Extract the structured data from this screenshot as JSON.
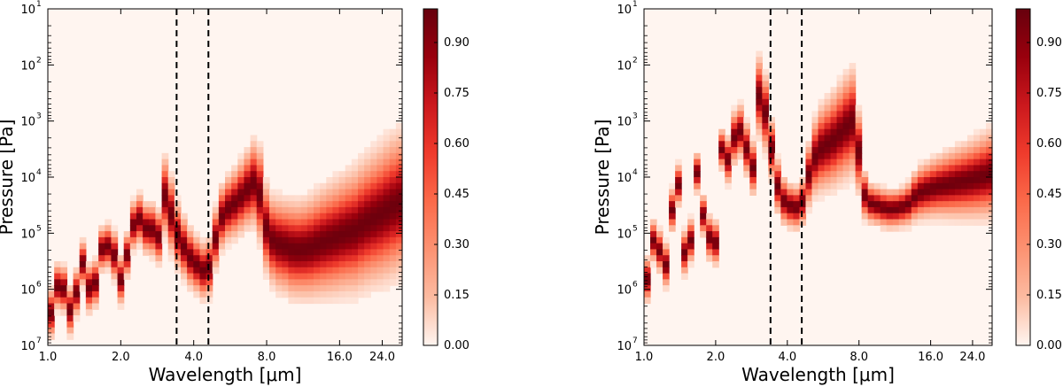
{
  "chart_data": [
    {
      "type": "heatmap",
      "xlabel": "Wavelength [μm]",
      "ylabel": "Pressure [Pa]",
      "x_scale": "log",
      "y_scale": "log",
      "y_inverted": true,
      "xlim": [
        1.0,
        29.0
      ],
      "ylim": [
        10000000,
        10
      ],
      "x_ticks": [
        1.0,
        2.0,
        4.0,
        8.0,
        16.0,
        24.0
      ],
      "x_tick_labels": [
        "1.0",
        "2.0",
        "4.0",
        "8.0",
        "16.0",
        "24.0"
      ],
      "y_ticks": [
        10,
        100,
        1000,
        10000,
        100000,
        1000000,
        10000000
      ],
      "y_tick_labels": [
        {
          "base": "10",
          "exp": "1"
        },
        {
          "base": "10",
          "exp": "2"
        },
        {
          "base": "10",
          "exp": "3"
        },
        {
          "base": "10",
          "exp": "4"
        },
        {
          "base": "10",
          "exp": "5"
        },
        {
          "base": "10",
          "exp": "6"
        },
        {
          "base": "10",
          "exp": "7"
        }
      ],
      "colorbar": {
        "range": [
          0.0,
          1.0
        ],
        "ticks": [
          0.0,
          0.15,
          0.3,
          0.45,
          0.6,
          0.75,
          0.9
        ],
        "tick_labels": [
          "0.00",
          "0.15",
          "0.30",
          "0.45",
          "0.60",
          "0.75",
          "0.90"
        ],
        "colormap": "Reds",
        "colors": [
          "#fff5f0",
          "#fcbba1",
          "#fc9272",
          "#fb6a4a",
          "#ef3b2c",
          "#cb181d",
          "#99000d",
          "#67000d"
        ]
      },
      "vlines": [
        3.4,
        4.6
      ],
      "vline_style": "dashed",
      "contribution_peak": {
        "x": [
          1.0,
          1.05,
          1.12,
          1.2,
          1.28,
          1.36,
          1.45,
          1.55,
          1.65,
          1.75,
          1.88,
          2.0,
          2.1,
          2.2,
          2.3,
          2.45,
          2.6,
          2.75,
          2.9,
          3.05,
          3.2,
          3.35,
          3.5,
          3.65,
          3.8,
          4.0,
          4.2,
          4.4,
          4.6,
          4.8,
          5.0,
          5.3,
          5.6,
          6.0,
          6.4,
          6.8,
          7.2,
          7.6,
          8.0,
          8.5,
          9.0,
          9.5,
          10.0,
          11.0,
          12.0,
          13.0,
          14.0,
          15.5,
          17.0,
          18.5,
          20.0,
          22.0,
          24.0,
          26.0,
          28.0,
          29.0
        ],
        "y": [
          3000000,
          2500000,
          500000,
          1800000,
          3500000,
          200000,
          900000,
          1100000,
          200000,
          160000,
          250000,
          700000,
          300000,
          110000,
          50000,
          60000,
          100000,
          80000,
          130000,
          20000,
          40000,
          90000,
          130000,
          180000,
          250000,
          330000,
          400000,
          480000,
          450000,
          250000,
          80000,
          45000,
          35000,
          28000,
          20000,
          15000,
          12000,
          25000,
          90000,
          140000,
          160000,
          170000,
          190000,
          200000,
          185000,
          160000,
          140000,
          120000,
          100000,
          90000,
          70000,
          55000,
          45000,
          35000,
          30000,
          25000
        ],
        "width_decades": [
          0.55,
          0.55,
          0.5,
          0.55,
          0.55,
          0.5,
          0.55,
          0.55,
          0.5,
          0.5,
          0.55,
          0.55,
          0.5,
          0.5,
          0.6,
          0.55,
          0.6,
          0.6,
          0.6,
          0.9,
          0.9,
          0.75,
          0.75,
          0.7,
          0.7,
          0.65,
          0.65,
          0.65,
          0.65,
          0.7,
          0.7,
          0.75,
          0.75,
          0.8,
          0.85,
          0.9,
          1.0,
          1.1,
          1.0,
          1.0,
          1.05,
          1.05,
          1.1,
          1.1,
          1.15,
          1.2,
          1.25,
          1.3,
          1.35,
          1.4,
          1.45,
          1.5,
          1.55,
          1.6,
          1.6,
          1.6
        ],
        "peak_strength": 0.98
      }
    },
    {
      "type": "heatmap",
      "xlabel": "Wavelength [μm]",
      "ylabel": "Pressure [Pa]",
      "x_scale": "log",
      "y_scale": "log",
      "y_inverted": true,
      "xlim": [
        1.0,
        29.0
      ],
      "ylim": [
        10000000,
        10
      ],
      "x_ticks": [
        1.0,
        2.0,
        4.0,
        8.0,
        16.0,
        24.0
      ],
      "x_tick_labels": [
        "1.0",
        "2.0",
        "4.0",
        "8.0",
        "16.0",
        "24.0"
      ],
      "y_ticks": [
        10,
        100,
        1000,
        10000,
        100000,
        1000000,
        10000000
      ],
      "y_tick_labels": [
        {
          "base": "10",
          "exp": "1"
        },
        {
          "base": "10",
          "exp": "2"
        },
        {
          "base": "10",
          "exp": "3"
        },
        {
          "base": "10",
          "exp": "4"
        },
        {
          "base": "10",
          "exp": "5"
        },
        {
          "base": "10",
          "exp": "6"
        },
        {
          "base": "10",
          "exp": "7"
        }
      ],
      "colorbar": {
        "range": [
          0.0,
          1.0
        ],
        "ticks": [
          0.0,
          0.15,
          0.3,
          0.45,
          0.6,
          0.75,
          0.9
        ],
        "tick_labels": [
          "0.00",
          "0.15",
          "0.30",
          "0.45",
          "0.60",
          "0.75",
          "0.90"
        ],
        "colormap": "Reds",
        "colors": [
          "#fff5f0",
          "#fcbba1",
          "#fc9272",
          "#fb6a4a",
          "#ef3b2c",
          "#cb181d",
          "#99000d",
          "#67000d"
        ]
      },
      "vlines": [
        3.4,
        4.6
      ],
      "vline_style": "dashed",
      "contribution_peak": {
        "x": [
          1.0,
          1.05,
          1.12,
          1.2,
          1.28,
          1.36,
          1.45,
          1.55,
          1.65,
          1.75,
          1.88,
          2.0,
          2.1,
          2.2,
          2.3,
          2.45,
          2.6,
          2.75,
          2.9,
          3.05,
          3.2,
          3.35,
          3.5,
          3.65,
          3.8,
          4.0,
          4.2,
          4.4,
          4.6,
          4.8,
          5.0,
          5.3,
          5.6,
          6.0,
          6.4,
          6.8,
          7.2,
          7.6,
          8.0,
          8.5,
          9.0,
          9.5,
          10.0,
          11.0,
          12.0,
          13.0,
          14.0,
          15.5,
          17.0,
          18.5,
          20.0,
          22.0,
          24.0,
          26.0,
          28.0,
          29.0
        ],
        "y": [
          800000,
          600000,
          60000,
          600000,
          200000,
          3000,
          200000,
          300000,
          6000,
          40000,
          120000,
          150000,
          3000,
          4000,
          6000,
          1000,
          2000,
          4000,
          8000,
          300,
          600,
          1500,
          6000,
          15000,
          25000,
          30000,
          35000,
          35000,
          30000,
          18000,
          6000,
          4000,
          3000,
          2500,
          2000,
          1500,
          1200,
          1000,
          4000,
          25000,
          30000,
          32000,
          35000,
          38000,
          35000,
          30000,
          20000,
          17000,
          15000,
          14000,
          13000,
          12000,
          11000,
          10000,
          9000,
          9000
        ],
        "width_decades": [
          0.5,
          0.5,
          0.45,
          0.5,
          0.5,
          0.45,
          0.5,
          0.5,
          0.45,
          0.45,
          0.5,
          0.5,
          0.45,
          0.45,
          0.6,
          0.6,
          0.6,
          0.6,
          0.6,
          0.9,
          0.9,
          0.7,
          0.65,
          0.6,
          0.55,
          0.5,
          0.5,
          0.5,
          0.5,
          0.6,
          0.8,
          0.9,
          1.0,
          1.05,
          1.1,
          1.15,
          1.2,
          1.2,
          0.9,
          0.5,
          0.45,
          0.45,
          0.45,
          0.45,
          0.45,
          0.5,
          0.6,
          0.65,
          0.7,
          0.75,
          0.8,
          0.85,
          0.9,
          0.95,
          1.0,
          1.0
        ],
        "peak_strength": 0.98
      }
    }
  ]
}
